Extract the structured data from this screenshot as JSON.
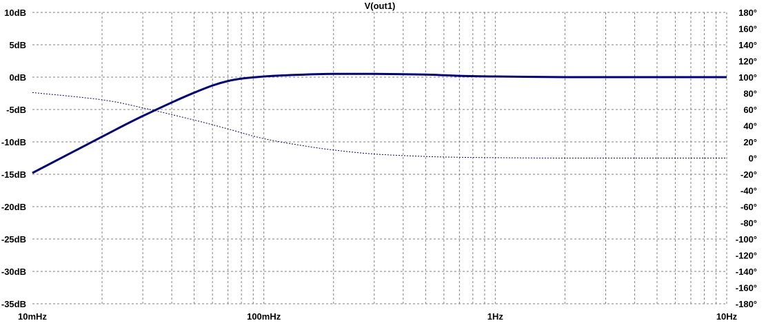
{
  "chart_data": {
    "type": "line",
    "title": "V(out1)",
    "x_scale": "log",
    "xlim_hz": [
      0.01,
      10
    ],
    "x_ticks_hz": [
      0.01,
      0.1,
      1,
      10
    ],
    "x_tick_labels": [
      "10mHz",
      "100mHz",
      "1Hz",
      "10Hz"
    ],
    "y_left": {
      "unit": "dB",
      "ylim": [
        -35,
        10
      ],
      "ticks": [
        10,
        5,
        0,
        -5,
        -10,
        -15,
        -20,
        -25,
        -30,
        -35
      ],
      "tick_labels": [
        "10dB",
        "5dB",
        "0dB",
        "-5dB",
        "-10dB",
        "-15dB",
        "-20dB",
        "-25dB",
        "-30dB",
        "-35dB"
      ]
    },
    "y_right": {
      "unit": "°",
      "ylim": [
        -180,
        180
      ],
      "ticks": [
        180,
        160,
        140,
        120,
        100,
        80,
        60,
        40,
        20,
        0,
        -20,
        -40,
        -60,
        -80,
        -100,
        -120,
        -140,
        -160,
        -180
      ],
      "tick_labels": [
        "180°",
        "160°",
        "140°",
        "120°",
        "100°",
        "80°",
        "60°",
        "40°",
        "20°",
        "0°",
        "-20°",
        "-40°",
        "-60°",
        "-80°",
        "-100°",
        "-120°",
        "-140°",
        "-160°",
        "-180°"
      ]
    },
    "grid": true,
    "series": [
      {
        "quantity": "magnitude",
        "axis": "left",
        "style": "solid",
        "color": "#000080",
        "x": [
          0.01,
          0.02,
          0.03,
          0.05,
          0.07,
          0.1,
          0.15,
          0.2,
          0.3,
          0.5,
          0.7,
          1,
          2,
          5,
          10
        ],
        "y": [
          -14.8,
          -9.2,
          -6.0,
          -2.4,
          -0.6,
          0.1,
          0.4,
          0.5,
          0.5,
          0.4,
          0.2,
          0.1,
          0.0,
          0.0,
          0.0
        ]
      },
      {
        "quantity": "phase",
        "axis": "right",
        "style": "dotted",
        "color": "#000080",
        "x": [
          0.01,
          0.02,
          0.03,
          0.05,
          0.07,
          0.1,
          0.15,
          0.2,
          0.3,
          0.5,
          0.7,
          1,
          2,
          5,
          10
        ],
        "y": [
          81,
          72,
          62,
          47,
          36,
          24,
          15,
          10,
          5,
          2,
          1,
          0.5,
          0,
          0,
          0
        ]
      }
    ]
  },
  "colors": {
    "trace": "#000080",
    "grid": "#808080",
    "text": "#000000",
    "background": "#ffffff"
  }
}
